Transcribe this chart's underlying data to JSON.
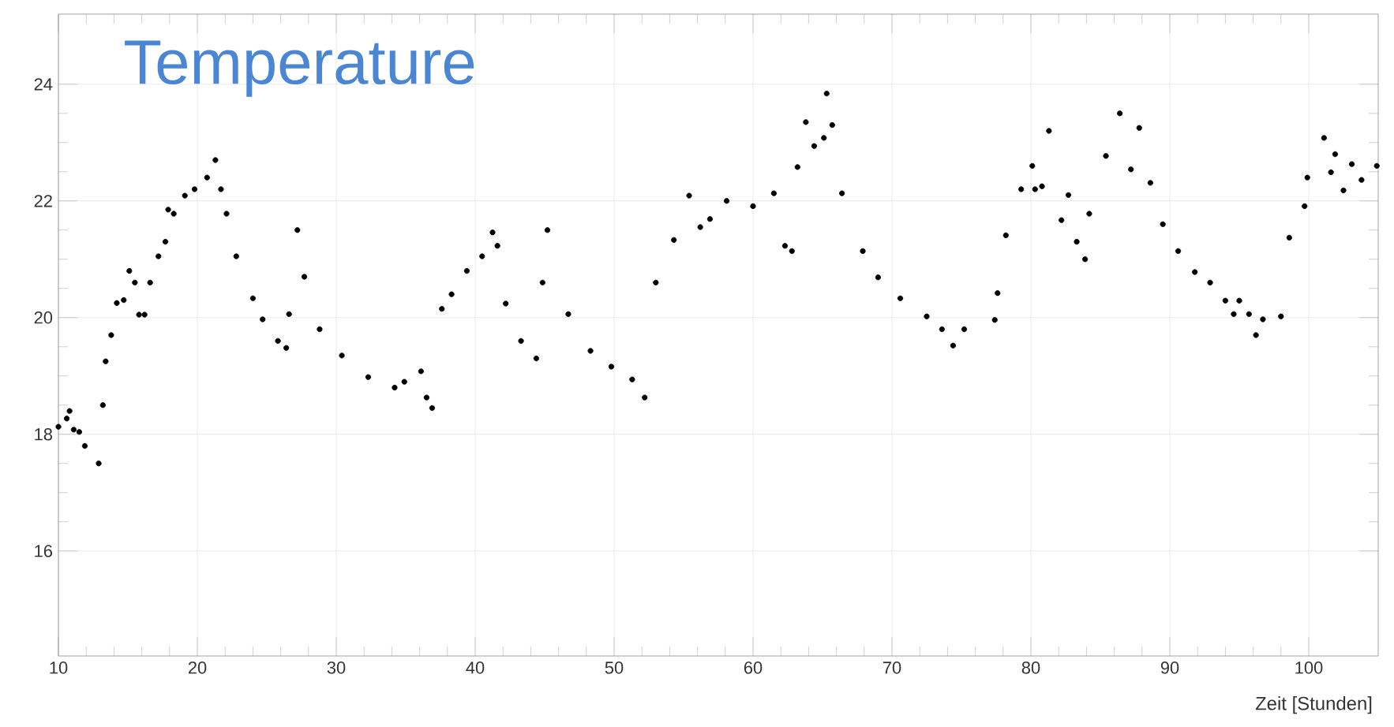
{
  "chart_data": {
    "type": "scatter",
    "title": "Temperature",
    "xlabel": "Zeit [Stunden]",
    "x": [
      10,
      10.6,
      10.8,
      11.1,
      11.5,
      11.9,
      12.9,
      13.2,
      13.4,
      13.8,
      14.2,
      14.7,
      15.1,
      15.5,
      15.8,
      16.2,
      16.6,
      17.2,
      17.7,
      17.9,
      18.3,
      19.1,
      19.8,
      20.7,
      21.3,
      21.7,
      22.1,
      22.8,
      24,
      24.7,
      25.8,
      26.4,
      26.6,
      27.2,
      27.7,
      28.8,
      30.4,
      32.3,
      34.2,
      34.9,
      36.1,
      36.5,
      36.9,
      37.6,
      38.3,
      39.4,
      40.5,
      41.25,
      41.6,
      42.2,
      43.3,
      44.4,
      44.85,
      45.2,
      46.7,
      48.3,
      49.8,
      51.3,
      52.2,
      53,
      54.3,
      55.4,
      56.2,
      56.9,
      58.1,
      60,
      61.5,
      62.3,
      62.8,
      63.2,
      63.8,
      64.4,
      65.1,
      65.3,
      65.7,
      66.4,
      67.9,
      69,
      70.6,
      72.5,
      73.6,
      74.4,
      75.2,
      77.4,
      77.6,
      78.2,
      79.3,
      80.1,
      80.3,
      80.8,
      81.3,
      82.2,
      82.7,
      83.3,
      83.9,
      84.2,
      85.4,
      86.4,
      87.2,
      87.8,
      88.6,
      89.5,
      90.6,
      91.8,
      92.9,
      94,
      94.6,
      95,
      95.7,
      96.2,
      96.7,
      98,
      98.6,
      99.7,
      99.9,
      101.1,
      101.6,
      101.9,
      102.5,
      103.1,
      103.8,
      104.9
    ],
    "values": [
      18.13,
      18.27,
      18.4,
      18.08,
      18.04,
      17.8,
      17.5,
      18.5,
      19.25,
      19.7,
      20.25,
      20.3,
      20.8,
      20.6,
      20.05,
      20.05,
      20.6,
      21.05,
      21.3,
      21.85,
      21.78,
      22.09,
      22.2,
      22.4,
      22.7,
      22.2,
      21.78,
      21.05,
      20.33,
      19.97,
      19.6,
      19.48,
      20.06,
      21.5,
      20.7,
      19.8,
      19.35,
      18.98,
      18.8,
      18.9,
      19.08,
      18.63,
      18.45,
      20.15,
      20.4,
      20.8,
      21.05,
      21.46,
      21.23,
      20.24,
      19.6,
      19.3,
      20.6,
      21.5,
      20.06,
      19.43,
      19.16,
      18.94,
      18.63,
      20.6,
      21.33,
      22.09,
      21.55,
      21.69,
      22,
      21.91,
      22.13,
      21.23,
      21.14,
      22.58,
      23.35,
      22.94,
      23.08,
      23.84,
      23.3,
      22.13,
      21.14,
      20.69,
      20.33,
      20.02,
      19.8,
      19.52,
      19.8,
      19.96,
      20.42,
      21.41,
      22.2,
      22.6,
      22.2,
      22.25,
      23.2,
      21.67,
      22.1,
      21.3,
      21,
      21.78,
      22.77,
      23.5,
      22.54,
      23.25,
      22.31,
      21.6,
      21.14,
      20.78,
      20.6,
      20.29,
      20.06,
      20.29,
      20.06,
      19.7,
      19.97,
      20.02,
      21.37,
      21.91,
      22.4,
      23.08,
      22.49,
      22.8,
      22.18,
      22.63,
      22.36,
      22.6
    ],
    "color": "#000000",
    "marker": "circle",
    "grid": true,
    "xlim": [
      10,
      105
    ],
    "ylim": [
      14.2,
      25.2
    ],
    "xticks": [
      10,
      20,
      30,
      40,
      50,
      60,
      70,
      80,
      90,
      100
    ],
    "yticks": [
      16,
      18,
      20,
      22,
      24
    ]
  }
}
